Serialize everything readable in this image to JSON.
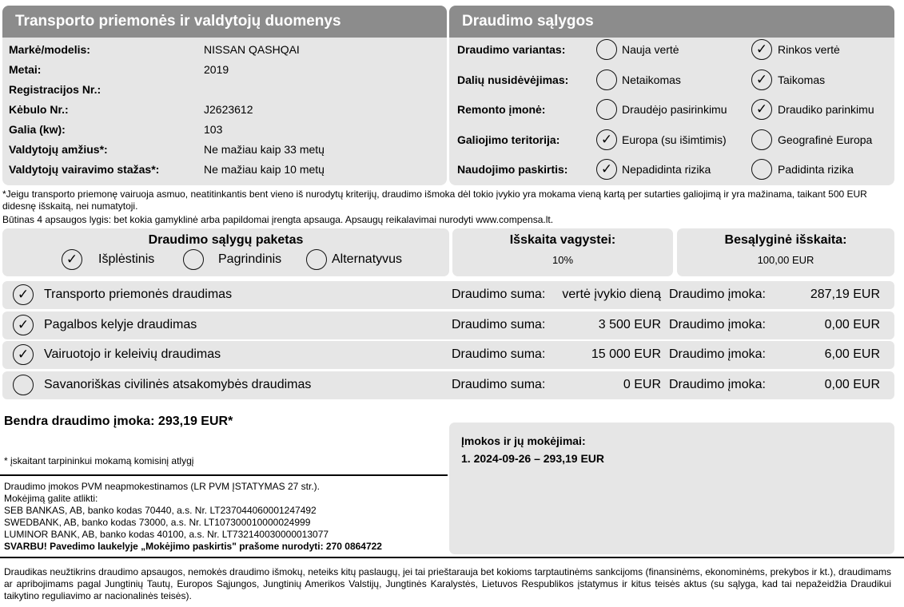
{
  "vehicle": {
    "title": "Transporto priemonės ir valdytojų duomenys",
    "rows": [
      {
        "label": "Markė/modelis:",
        "value": "NISSAN QASHQAI"
      },
      {
        "label": "Metai:",
        "value": "2019"
      },
      {
        "label": "Registracijos Nr.:",
        "value": ""
      },
      {
        "label": "Kėbulo Nr.:",
        "value": "J2623612"
      },
      {
        "label": "Galia (kw):",
        "value": "103"
      },
      {
        "label": "Valdytojų amžius*:",
        "value": "Ne mažiau kaip 33 metų"
      },
      {
        "label": "Valdytojų vairavimo stažas*:",
        "value": "Ne mažiau kaip 10 metų"
      }
    ]
  },
  "conditions": {
    "title": "Draudimo sąlygos",
    "rows": [
      {
        "label": "Draudimo variantas:",
        "opt1": "Nauja vertė",
        "opt1_checked": false,
        "opt2": "Rinkos vertė",
        "opt2_checked": true
      },
      {
        "label": "Dalių nusidėvėjimas:",
        "opt1": "Netaikomas",
        "opt1_checked": false,
        "opt2": "Taikomas",
        "opt2_checked": true
      },
      {
        "label": "Remonto įmonė:",
        "opt1": "Draudėjo pasirinkimu",
        "opt1_checked": false,
        "opt2": "Draudiko parinkimu",
        "opt2_checked": true
      },
      {
        "label": "Galiojimo teritorija:",
        "opt1": "Europa (su išimtimis)",
        "opt1_checked": true,
        "opt2": "Geografinė Europa",
        "opt2_checked": false
      },
      {
        "label": "Naudojimo paskirtis:",
        "opt1": "Nepadidinta rizika",
        "opt1_checked": true,
        "opt2": "Padidinta rizika",
        "opt2_checked": false
      }
    ]
  },
  "notes": {
    "criteria": "*Jeigu transporto priemonę vairuoja asmuo, neatitinkantis bent vieno iš nurodytų kriterijų, draudimo išmoka dėl tokio įvykio yra mokama vieną kartą per sutarties galiojimą ir yra mažinama, taikant 500 EUR didesnę išskaitą, nei numatytoji.",
    "security": "Būtinas 4 apsaugos lygis: bet kokia gamyklinė arba papildomai įrengta apsauga. Apsaugų reikalavimai nurodyti www.compensa.lt."
  },
  "package": {
    "title": "Draudimo sąlygų paketas",
    "options": [
      {
        "label": "Išplėstinis",
        "checked": true
      },
      {
        "label": "Pagrindinis",
        "checked": false
      },
      {
        "label": "Alternatyvus",
        "checked": false
      }
    ]
  },
  "theft_deductible": {
    "title": "Išskaita vagystei:",
    "value": "10%"
  },
  "deductible": {
    "title": "Besąlyginė išskaita:",
    "value": "100,00 EUR"
  },
  "coverages": [
    {
      "name": "Transporto priemonės draudimas",
      "checked": true,
      "sum_label": "Draudimo suma:",
      "sum": "vertė įvykio dieną",
      "premium_label": "Draudimo įmoka:",
      "premium": "287,19 EUR"
    },
    {
      "name": "Pagalbos kelyje draudimas",
      "checked": true,
      "sum_label": "Draudimo suma:",
      "sum": "3 500 EUR",
      "premium_label": "Draudimo įmoka:",
      "premium": "0,00 EUR"
    },
    {
      "name": "Vairuotojo ir keleivių draudimas",
      "checked": true,
      "sum_label": "Draudimo suma:",
      "sum": "15 000 EUR",
      "premium_label": "Draudimo įmoka:",
      "premium": "6,00 EUR"
    },
    {
      "name": "Savanoriškas civilinės atsakomybės draudimas",
      "checked": false,
      "sum_label": "Draudimo suma:",
      "sum": "0 EUR",
      "premium_label": "Draudimo įmoka:",
      "premium": "0,00 EUR"
    }
  ],
  "total": {
    "label": "Bendra draudimo įmoka: 293,19 EUR*",
    "note": "* įskaitant tarpininkui mokamą komisinį atlygį"
  },
  "payments": {
    "title": "Įmokos ir jų mokėjimai:",
    "items": [
      "1. 2024-09-26 – 293,19 EUR"
    ]
  },
  "bank": {
    "lines": [
      "Draudimo įmokos PVM neapmokestinamos (LR PVM ĮSTATYMAS 27 str.).",
      "Mokėjimą galite atlikti:",
      "SEB BANKAS, AB, banko kodas 70440, a.s. Nr. LT237044060001247492",
      "SWEDBANK, AB, banko kodas 73000, a.s. Nr. LT107300010000024999",
      "LUMINOR BANK, AB, banko kodas 40100, a.s. Nr. LT732140030000013077"
    ],
    "important": "SVARBU! Pavedimo laukelyje „Mokėjimo paskirtis\" prašome nurodyti: 270 0864722"
  },
  "footer": "Draudikas neužtikrins draudimo apsaugos, nemokės draudimo išmokų, neteiks kitų paslaugų, jei tai prieštarauja bet kokioms tarptautinėms sankcijoms (finansinėms, ekonominėms, prekybos ir kt.), draudimams ar apribojimams pagal Jungtinių Tautų, Europos Sąjungos, Jungtinių Amerikos Valstijų, Jungtinės Karalystės, Lietuvos Respublikos įstatymus ir kitus teisės aktus (su sąlyga, kad tai nepažeidžia Draudikui taikytino reguliavimo ar nacionalinės teisės).",
  "colors": {
    "header": "#8c8c8c",
    "panel": "#e6e6e6"
  }
}
